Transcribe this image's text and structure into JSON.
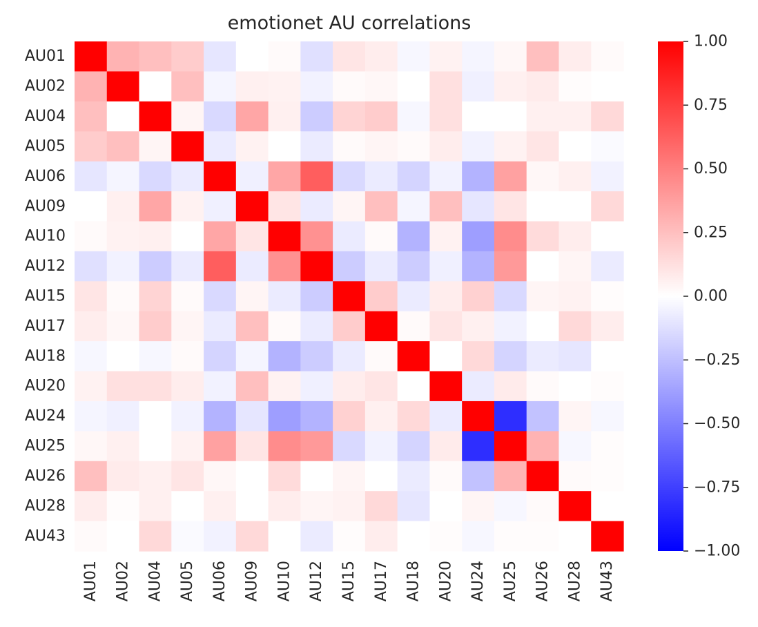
{
  "chart_data": {
    "type": "heatmap",
    "title": "emotionet AU correlations",
    "xlabel": "",
    "ylabel": "",
    "labels": [
      "AU01",
      "AU02",
      "AU04",
      "AU05",
      "AU06",
      "AU09",
      "AU10",
      "AU12",
      "AU15",
      "AU17",
      "AU18",
      "AU20",
      "AU24",
      "AU25",
      "AU26",
      "AU28",
      "AU43"
    ],
    "matrix": [
      [
        1.0,
        0.3,
        0.25,
        0.2,
        -0.1,
        0.0,
        0.02,
        -0.12,
        0.1,
        0.07,
        -0.03,
        0.05,
        -0.04,
        0.03,
        0.25,
        0.07,
        0.02
      ],
      [
        0.3,
        1.0,
        0.0,
        0.25,
        -0.04,
        0.06,
        0.05,
        -0.05,
        0.02,
        0.03,
        0.0,
        0.12,
        -0.06,
        0.06,
        0.08,
        0.01,
        0.0
      ],
      [
        0.25,
        0.0,
        1.0,
        0.04,
        -0.15,
        0.35,
        0.06,
        -0.2,
        0.17,
        0.2,
        -0.03,
        0.12,
        0.0,
        0.0,
        0.06,
        0.06,
        0.15
      ],
      [
        0.2,
        0.25,
        0.04,
        1.0,
        -0.08,
        0.05,
        0.0,
        -0.08,
        0.02,
        0.04,
        0.02,
        0.07,
        -0.05,
        0.05,
        0.1,
        0.0,
        -0.02
      ],
      [
        -0.1,
        -0.04,
        -0.15,
        -0.08,
        1.0,
        -0.06,
        0.35,
        0.63,
        -0.15,
        -0.08,
        -0.17,
        -0.05,
        -0.3,
        0.37,
        0.03,
        0.06,
        -0.05
      ],
      [
        0.0,
        0.06,
        0.35,
        0.05,
        -0.06,
        1.0,
        0.1,
        -0.08,
        0.04,
        0.25,
        -0.04,
        0.25,
        -0.1,
        0.1,
        0.0,
        0.0,
        0.15
      ],
      [
        0.02,
        0.05,
        0.06,
        0.0,
        0.35,
        0.1,
        1.0,
        0.43,
        -0.08,
        0.02,
        -0.3,
        0.05,
        -0.38,
        0.45,
        0.14,
        0.07,
        0.0
      ],
      [
        -0.12,
        -0.05,
        -0.2,
        -0.08,
        0.63,
        -0.08,
        0.43,
        1.0,
        -0.2,
        -0.08,
        -0.2,
        -0.06,
        -0.3,
        0.4,
        0.0,
        0.04,
        -0.08
      ],
      [
        0.1,
        0.02,
        0.17,
        0.02,
        -0.15,
        0.04,
        -0.08,
        -0.2,
        1.0,
        0.2,
        -0.08,
        0.07,
        0.18,
        -0.15,
        0.04,
        0.05,
        0.01
      ],
      [
        0.07,
        0.03,
        0.2,
        0.04,
        -0.08,
        0.25,
        0.02,
        -0.08,
        0.2,
        1.0,
        0.02,
        0.1,
        0.06,
        -0.05,
        0.0,
        0.15,
        0.07
      ],
      [
        -0.03,
        0.0,
        -0.03,
        0.02,
        -0.17,
        -0.04,
        -0.3,
        -0.2,
        -0.08,
        0.02,
        1.0,
        0.0,
        0.15,
        -0.17,
        -0.08,
        -0.1,
        0.0
      ],
      [
        0.05,
        0.12,
        0.12,
        0.07,
        -0.05,
        0.25,
        0.05,
        -0.06,
        0.07,
        0.1,
        0.0,
        1.0,
        -0.08,
        0.08,
        0.02,
        0.0,
        0.01
      ],
      [
        -0.04,
        -0.06,
        0.0,
        -0.05,
        -0.3,
        -0.1,
        -0.38,
        -0.3,
        0.18,
        0.06,
        0.15,
        -0.08,
        1.0,
        -0.82,
        -0.24,
        0.04,
        -0.03
      ],
      [
        0.03,
        0.06,
        0.0,
        0.05,
        0.37,
        0.1,
        0.45,
        0.4,
        -0.15,
        -0.05,
        -0.17,
        0.08,
        -0.82,
        1.0,
        0.3,
        -0.03,
        0.01
      ],
      [
        0.25,
        0.08,
        0.06,
        0.1,
        0.03,
        0.0,
        0.14,
        0.0,
        0.04,
        0.0,
        -0.08,
        0.02,
        -0.24,
        0.3,
        1.0,
        0.02,
        0.01
      ],
      [
        0.07,
        0.01,
        0.06,
        0.0,
        0.06,
        0.0,
        0.07,
        0.04,
        0.05,
        0.15,
        -0.1,
        0.0,
        0.04,
        -0.03,
        0.02,
        1.0,
        0.0
      ],
      [
        0.02,
        0.0,
        0.15,
        -0.02,
        -0.05,
        0.15,
        0.0,
        -0.08,
        0.01,
        0.07,
        0.0,
        0.01,
        -0.03,
        0.01,
        0.01,
        0.0,
        1.0
      ]
    ],
    "colorbar": {
      "vmin": -1.0,
      "vmax": 1.0,
      "tick_values": [
        1.0,
        0.75,
        0.5,
        0.25,
        0.0,
        -0.25,
        -0.5,
        -0.75,
        -1.0
      ],
      "tick_labels": [
        "1.00",
        "0.75",
        "0.50",
        "0.25",
        "0.00",
        "−0.25",
        "−0.50",
        "−0.75",
        "−1.00"
      ],
      "colormap": "bwr",
      "color_low": "#0000ff",
      "color_mid": "#ffffff",
      "color_high": "#ff0000"
    },
    "legend": "colorbar-right",
    "grid": false
  }
}
